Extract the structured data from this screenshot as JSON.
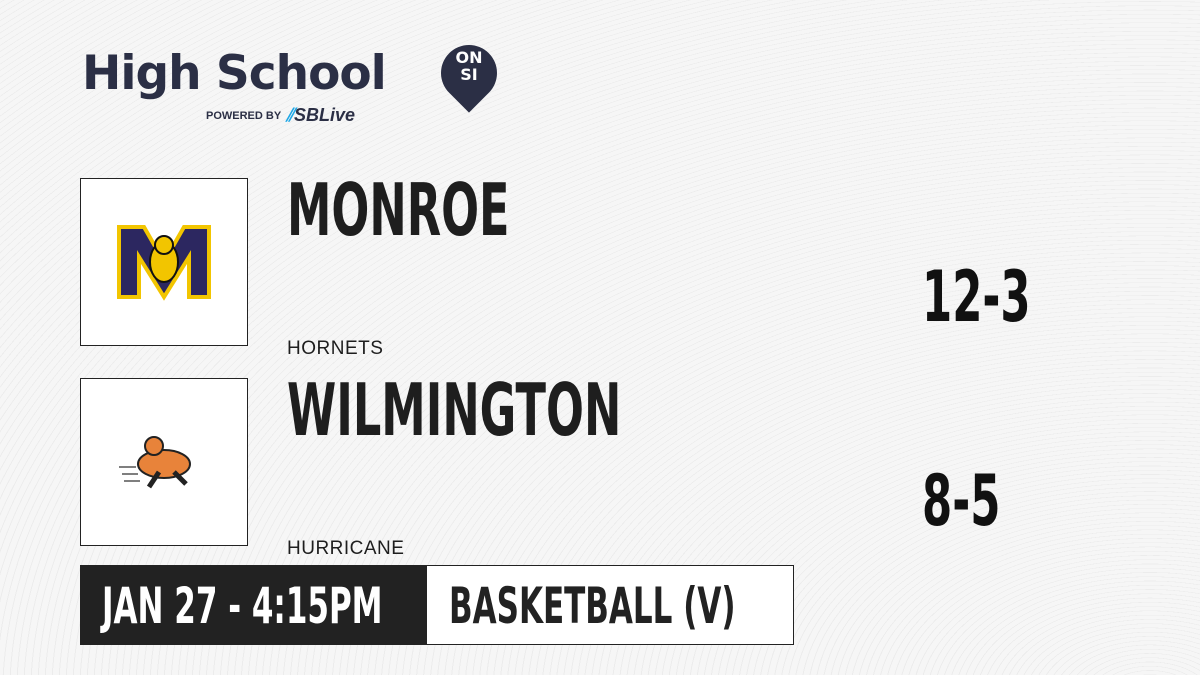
{
  "brand": {
    "title": "High School",
    "badge_top": "ON",
    "badge_bottom": "SI",
    "powered_by": "POWERED BY",
    "partner": "SBLive",
    "partner_color": "#1ea7e6",
    "color": "#2b2f45"
  },
  "home": {
    "name": "MONROE",
    "mascot": "HORNETS",
    "record": "12-3",
    "logo": "hornet-logo"
  },
  "away": {
    "name": "WILMINGTON",
    "mascot": "HURRICANE",
    "record": "8-5",
    "logo": "hurricane-runner-logo"
  },
  "game": {
    "datetime": "JAN 27 - 4:15PM",
    "sport": "BASKETBALL (V)"
  }
}
